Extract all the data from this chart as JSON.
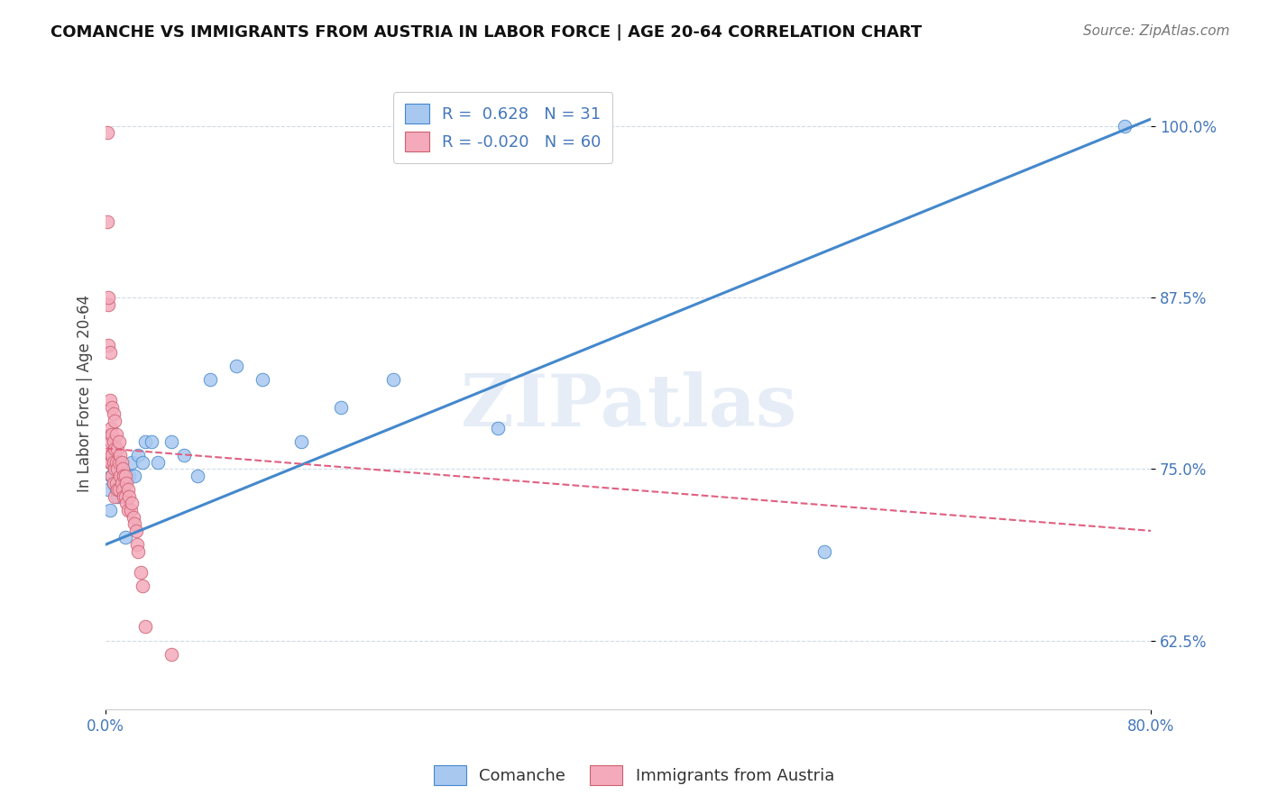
{
  "title": "COMANCHE VS IMMIGRANTS FROM AUSTRIA IN LABOR FORCE | AGE 20-64 CORRELATION CHART",
  "source": "Source: ZipAtlas.com",
  "ylabel": "In Labor Force | Age 20-64",
  "r_comanche": 0.628,
  "n_comanche": 31,
  "r_austria": -0.02,
  "n_austria": 60,
  "xlim": [
    0.0,
    0.8
  ],
  "ylim": [
    0.575,
    1.035
  ],
  "yticks": [
    0.625,
    0.75,
    0.875,
    1.0
  ],
  "ytick_labels": [
    "62.5%",
    "75.0%",
    "87.5%",
    "100.0%"
  ],
  "xticks": [
    0.0,
    0.8
  ],
  "xtick_labels": [
    "0.0%",
    "80.0%"
  ],
  "color_comanche": "#A8C8F0",
  "color_austria": "#F4AABB",
  "line_color_comanche": "#4488CC",
  "line_color_austria": "#E06080",
  "watermark": "ZIPatlas",
  "comanche_x": [
    0.002,
    0.003,
    0.004,
    0.005,
    0.006,
    0.007,
    0.008,
    0.009,
    0.01,
    0.012,
    0.015,
    0.018,
    0.02,
    0.022,
    0.025,
    0.028,
    0.03,
    0.035,
    0.04,
    0.05,
    0.06,
    0.07,
    0.08,
    0.1,
    0.12,
    0.15,
    0.18,
    0.22,
    0.3,
    0.55,
    0.78
  ],
  "comanche_y": [
    0.735,
    0.72,
    0.745,
    0.755,
    0.74,
    0.76,
    0.735,
    0.73,
    0.755,
    0.74,
    0.7,
    0.745,
    0.755,
    0.745,
    0.76,
    0.755,
    0.77,
    0.77,
    0.755,
    0.77,
    0.76,
    0.745,
    0.815,
    0.825,
    0.815,
    0.77,
    0.795,
    0.815,
    0.78,
    0.69,
    1.0
  ],
  "austria_x": [
    0.001,
    0.001,
    0.002,
    0.002,
    0.002,
    0.003,
    0.003,
    0.003,
    0.003,
    0.003,
    0.004,
    0.004,
    0.004,
    0.005,
    0.005,
    0.005,
    0.005,
    0.006,
    0.006,
    0.006,
    0.006,
    0.007,
    0.007,
    0.007,
    0.007,
    0.008,
    0.008,
    0.008,
    0.009,
    0.009,
    0.009,
    0.01,
    0.01,
    0.01,
    0.011,
    0.011,
    0.012,
    0.012,
    0.013,
    0.013,
    0.014,
    0.014,
    0.015,
    0.015,
    0.016,
    0.016,
    0.017,
    0.017,
    0.018,
    0.019,
    0.02,
    0.021,
    0.022,
    0.023,
    0.024,
    0.025,
    0.027,
    0.028,
    0.03,
    0.05
  ],
  "austria_y": [
    0.995,
    0.93,
    0.87,
    0.875,
    0.84,
    0.835,
    0.8,
    0.775,
    0.76,
    0.755,
    0.78,
    0.77,
    0.755,
    0.795,
    0.775,
    0.76,
    0.745,
    0.79,
    0.77,
    0.755,
    0.74,
    0.785,
    0.765,
    0.75,
    0.73,
    0.775,
    0.755,
    0.74,
    0.765,
    0.75,
    0.735,
    0.77,
    0.755,
    0.735,
    0.76,
    0.745,
    0.755,
    0.74,
    0.75,
    0.735,
    0.745,
    0.73,
    0.745,
    0.73,
    0.74,
    0.725,
    0.735,
    0.72,
    0.73,
    0.72,
    0.725,
    0.715,
    0.71,
    0.705,
    0.695,
    0.69,
    0.675,
    0.665,
    0.635,
    0.615
  ],
  "blue_line_x": [
    0.0,
    0.8
  ],
  "blue_line_y": [
    0.695,
    1.005
  ],
  "pink_line_x": [
    0.0,
    0.8
  ],
  "pink_line_y": [
    0.765,
    0.705
  ]
}
